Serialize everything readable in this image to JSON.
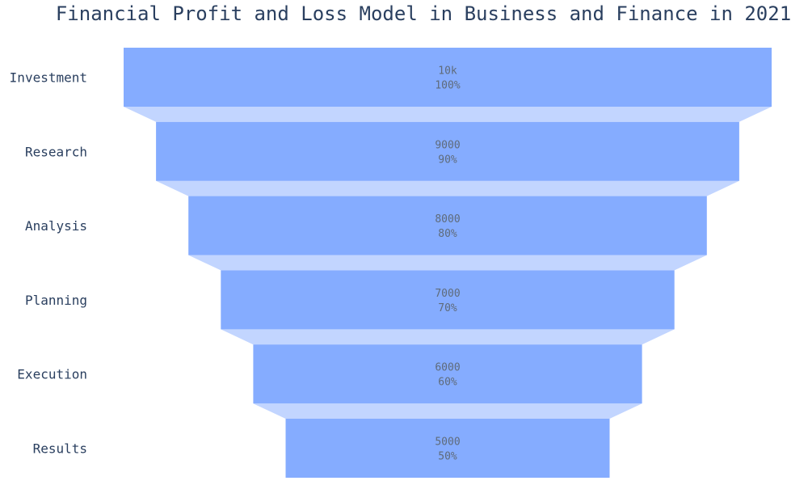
{
  "chart_data": {
    "type": "funnel",
    "title": "Financial Profit and Loss Model in Business and Finance in 2021",
    "stages": [
      "Investment",
      "Research",
      "Analysis",
      "Planning",
      "Execution",
      "Results"
    ],
    "values": [
      10000,
      9000,
      8000,
      7000,
      6000,
      5000
    ],
    "value_labels": [
      "10k",
      "9000",
      "8000",
      "7000",
      "6000",
      "5000"
    ],
    "percent_labels": [
      "100%",
      "90%",
      "80%",
      "70%",
      "60%",
      "50%"
    ],
    "colors": {
      "bar": "#85acff",
      "connector": "#c2d5ff"
    }
  }
}
